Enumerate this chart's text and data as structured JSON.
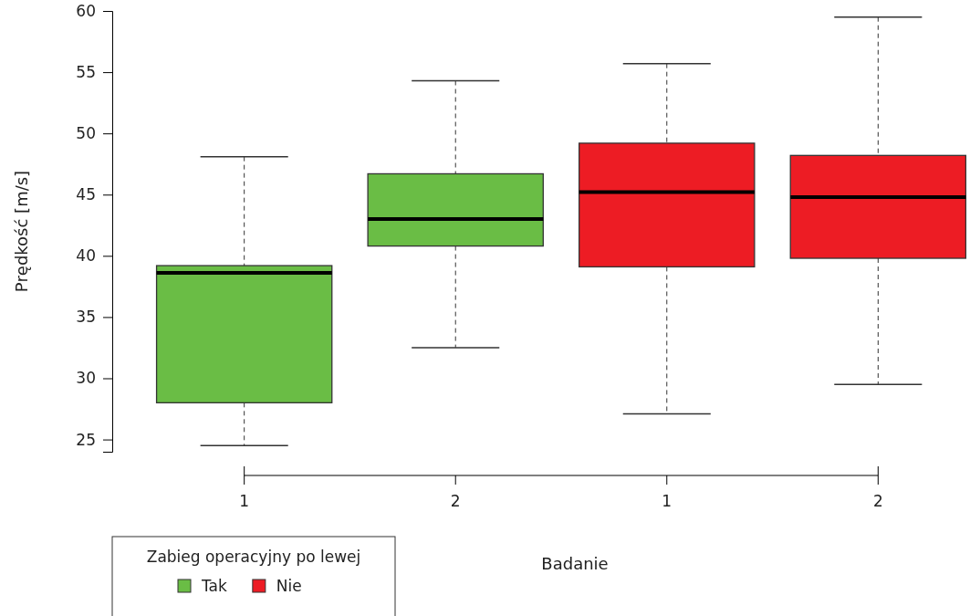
{
  "chart_data": {
    "type": "box",
    "xlabel": "Badanie",
    "ylabel": "Prędkość [m/s]",
    "legend_title": "Zabieg operacyjny po lewej",
    "legend": "bottom left",
    "categories": [
      "1",
      "2",
      "1",
      "2"
    ],
    "ylim": [
      24,
      60
    ],
    "yticks": [
      25,
      30,
      35,
      40,
      45,
      50,
      55,
      60
    ],
    "grid": false,
    "series": [
      {
        "name": "Tak",
        "color": "#6abd45",
        "boxes": [
          {
            "low": 24.5,
            "q1": 28,
            "median": 38.6,
            "q3": 39.2,
            "high": 48.1
          },
          {
            "low": 32.5,
            "q1": 40.8,
            "median": 43,
            "q3": 46.7,
            "high": 54.3
          },
          null,
          null
        ]
      },
      {
        "name": "Nie",
        "color": "#ed1c24",
        "boxes": [
          null,
          null,
          {
            "low": 27.1,
            "q1": 39.1,
            "median": 45.2,
            "q3": 49.2,
            "high": 55.7
          },
          {
            "low": 29.5,
            "q1": 39.8,
            "median": 44.8,
            "q3": 48.2,
            "high": 59.5
          }
        ]
      }
    ]
  }
}
